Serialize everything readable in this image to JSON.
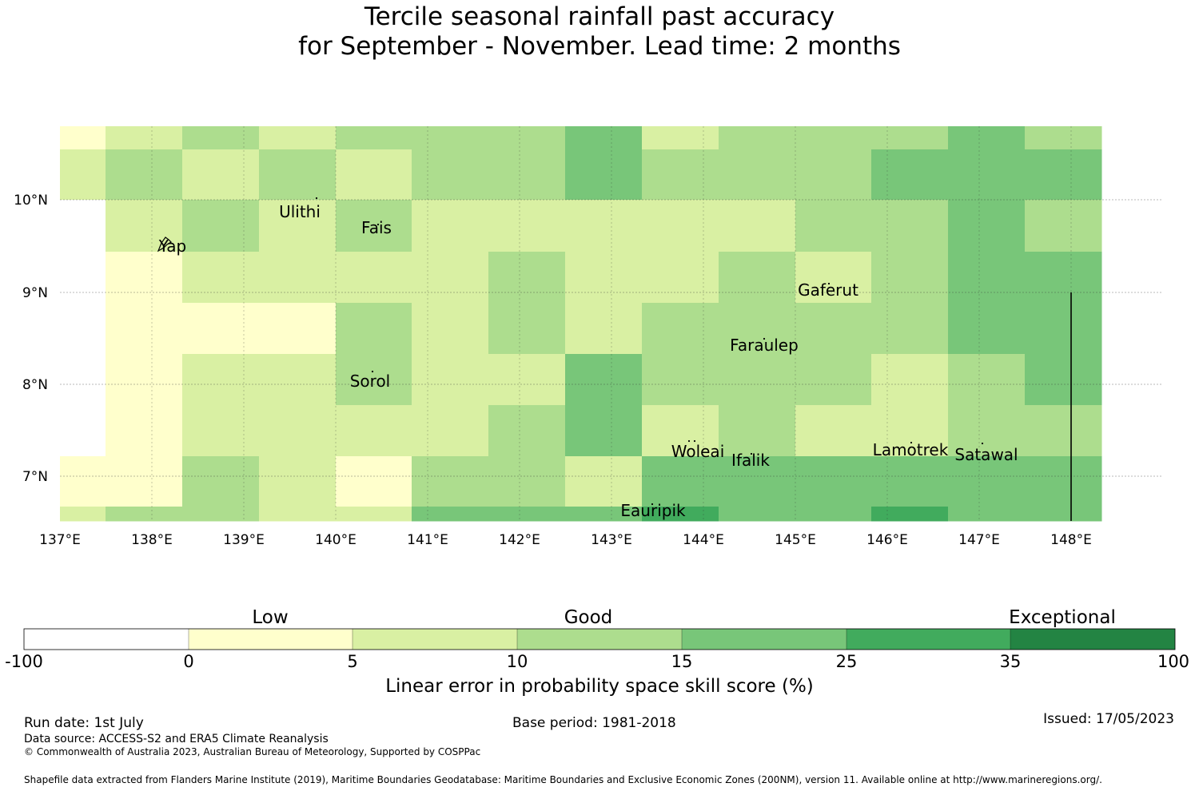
{
  "title": {
    "line1": "Tercile seasonal rainfall past accuracy",
    "line2": "for September - November. Lead time: 2 months"
  },
  "map": {
    "lat_ticks": [
      "10°N",
      "9°N",
      "8°N",
      "7°N"
    ],
    "lon_ticks": [
      "137°E",
      "138°E",
      "139°E",
      "140°E",
      "141°E",
      "142°E",
      "143°E",
      "144°E",
      "145°E",
      "146°E",
      "147°E",
      "148°E"
    ],
    "places": [
      "Ulithi",
      "Fais",
      "Yap",
      "Gaferut",
      "Faraulep",
      "Sorol",
      "Woleai",
      "Ifalik",
      "Lamotrek",
      "Satawal",
      "Eauripik"
    ],
    "category_colors": [
      "#ffffff",
      "#ffffcc",
      "#d9f0a3",
      "#addd8e",
      "#78c679",
      "#41ab5d",
      "#238443"
    ],
    "grid_categories": [
      [
        1,
        2,
        3,
        2,
        3,
        3,
        3,
        4,
        2,
        3,
        3,
        3,
        4,
        3
      ],
      [
        2,
        3,
        2,
        3,
        2,
        3,
        3,
        4,
        3,
        3,
        3,
        4,
        4,
        4
      ],
      [
        0,
        2,
        3,
        2,
        3,
        2,
        2,
        2,
        2,
        2,
        3,
        3,
        4,
        3
      ],
      [
        0,
        1,
        2,
        2,
        2,
        2,
        3,
        2,
        2,
        3,
        2,
        3,
        4,
        4
      ],
      [
        0,
        1,
        1,
        1,
        3,
        2,
        3,
        2,
        3,
        3,
        3,
        3,
        4,
        4
      ],
      [
        0,
        1,
        2,
        2,
        3,
        2,
        2,
        4,
        3,
        3,
        3,
        2,
        3,
        4
      ],
      [
        0,
        1,
        2,
        2,
        2,
        2,
        3,
        4,
        2,
        3,
        2,
        2,
        3,
        3
      ],
      [
        1,
        1,
        3,
        2,
        1,
        3,
        3,
        2,
        4,
        4,
        4,
        4,
        4,
        4
      ],
      [
        2,
        3,
        3,
        2,
        2,
        4,
        4,
        4,
        5,
        4,
        4,
        5,
        4,
        4
      ]
    ]
  },
  "colorbar": {
    "categories": [
      "Low",
      "Good",
      "Exceptional"
    ],
    "ticks": [
      "-100",
      "0",
      "5",
      "10",
      "15",
      "25",
      "35",
      "100"
    ],
    "colors": [
      "#ffffff",
      "#ffffcc",
      "#d9f0a3",
      "#addd8e",
      "#78c679",
      "#41ab5d",
      "#238443"
    ],
    "label": "Linear error in probability space skill score (%)"
  },
  "footer": {
    "run_date": "Run date: 1st July",
    "base_period": "Base period: 1981-2018",
    "issued": "Issued: 17/05/2023",
    "data_source": "Data source: ACCESS-S2 and ERA5 Climate Reanalysis",
    "copyright": "© Commonwealth of Australia 2023, Australian Bureau of Meteorology, Supported by COSPPac",
    "shapefile": "Shapefile data extracted from Flanders Marine Institute (2019), Maritime Boundaries Geodatabase: Maritime Boundaries and Exclusive Economic Zones (200NM), version 11. Available online at http://www.marineregions.org/."
  }
}
